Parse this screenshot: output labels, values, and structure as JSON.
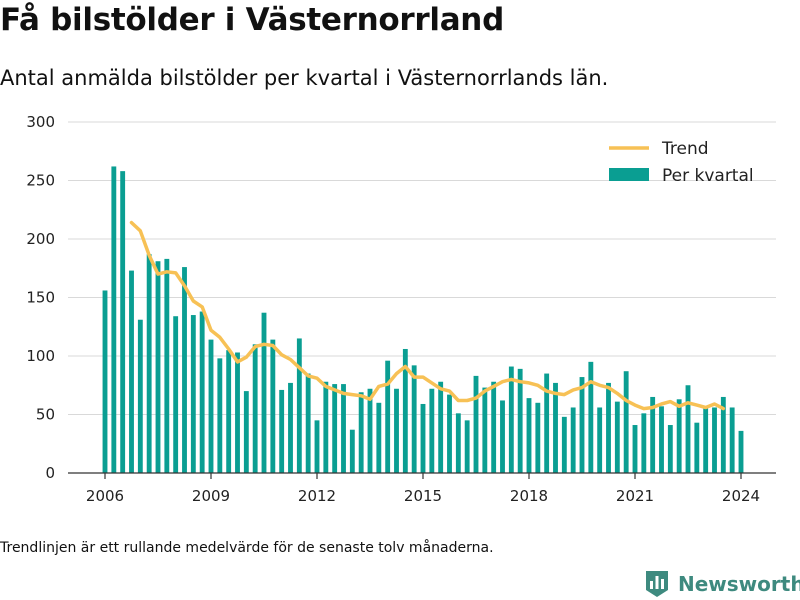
{
  "title": "Få bilstölder i Västernorrland",
  "subtitle": "Antal anmälda bilstölder per kvartal i Västernorrlands län.",
  "note": "Trendlinjen är ett rullande medelvärde för de senaste tolv månaderna.",
  "brand": {
    "name": "Newsworthy",
    "color": "#3e8a7f",
    "icon": "bar-chart-logo-icon"
  },
  "colors": {
    "bars": "#0a9e92",
    "trend": "#f7c155",
    "grid": "#d9d9d9",
    "axis": "#333333"
  },
  "chart_data": {
    "type": "bar",
    "grid": true,
    "legend_placement": "top-right",
    "ylim": [
      0,
      300
    ],
    "yticks": [
      0,
      50,
      100,
      150,
      200,
      250,
      300
    ],
    "xlim": [
      2005.5,
      2025.0
    ],
    "xticks": [
      2006,
      2009,
      2012,
      2015,
      2018,
      2021,
      2024
    ],
    "x_start": 2006.0,
    "x_step": 0.25,
    "series": [
      {
        "name": "Per kvartal",
        "type": "bar",
        "values": [
          156,
          262,
          258,
          173,
          131,
          187,
          181,
          183,
          134,
          176,
          135,
          138,
          114,
          98,
          105,
          103,
          70,
          110,
          137,
          114,
          71,
          77,
          115,
          85,
          45,
          78,
          76,
          76,
          37,
          69,
          72,
          60,
          96,
          72,
          106,
          92,
          59,
          72,
          78,
          67,
          51,
          45,
          83,
          73,
          78,
          62,
          91,
          89,
          64,
          60,
          85,
          77,
          48,
          56,
          82,
          95,
          56,
          77,
          61,
          87,
          41,
          51,
          65,
          57,
          41,
          63,
          75,
          43,
          56,
          56,
          65,
          56,
          36
        ]
      },
      {
        "name": "Trend",
        "type": "line",
        "x_start": 2006.75,
        "values": [
          214,
          207,
          186,
          170,
          172,
          171,
          160,
          147,
          142,
          122,
          116,
          106,
          95,
          99,
          108,
          110,
          109,
          101,
          97,
          90,
          83,
          81,
          74,
          71,
          68,
          67,
          66,
          63,
          74,
          76,
          85,
          91,
          82,
          82,
          77,
          72,
          70,
          62,
          62,
          64,
          70,
          74,
          78,
          80,
          78,
          77,
          75,
          70,
          68,
          67,
          71,
          73,
          78,
          75,
          73,
          68,
          62,
          58,
          55,
          56,
          59,
          61,
          57,
          60,
          58,
          56,
          59,
          55
        ]
      }
    ]
  }
}
